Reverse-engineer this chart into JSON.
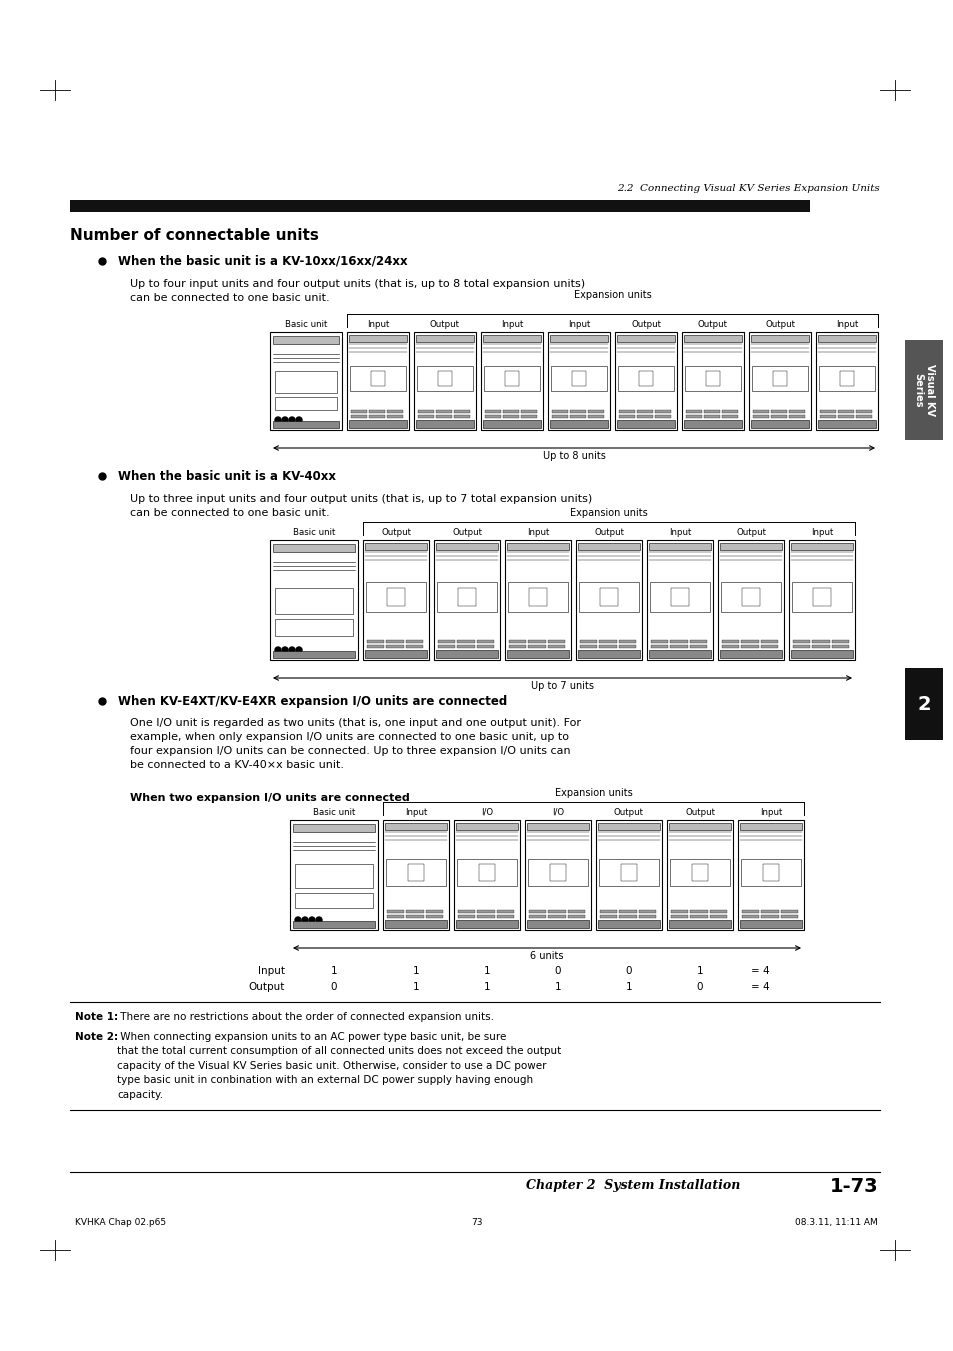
{
  "page_title": "2.2  Connecting Visual KV Series Expansion Units",
  "section_title": "Number of connectable units",
  "bg_color": "#ffffff",
  "header_bar_color": "#1a1a1a",
  "section1_bullet": "When the basic unit is a KV-10xx/16xx/24xx",
  "section1_body": "Up to four input units and four output units (that is, up to 8 total expansion units)\ncan be connected to one basic unit.",
  "section1_expansion_label": "Expansion units",
  "section1_units": [
    "Basic unit",
    "Input",
    "Output",
    "Input",
    "Input",
    "Output",
    "Output",
    "Output",
    "Input"
  ],
  "section1_arrow_label": "Up to 8 units",
  "section2_bullet": "When the basic unit is a KV-40xx",
  "section2_body": "Up to three input units and four output units (that is, up to 7 total expansion units)\ncan be connected to one basic unit.",
  "section2_expansion_label": "Expansion units",
  "section2_units": [
    "Basic unit",
    "Output",
    "Output",
    "Input",
    "Output",
    "Input",
    "Output",
    "Input"
  ],
  "section2_arrow_label": "Up to 7 units",
  "section3_bullet": "When KV-E4XT/KV-E4XR expansion I/O units are connected",
  "section3_body": "One I/O unit is regarded as two units (that is, one input and one output unit). For\nexample, when only expansion I/O units are connected to one basic unit, up to\nfour expansion I/O units can be connected. Up to three expansion I/O units can\nbe connected to a KV-40×x basic unit.",
  "section3_sub_label": "When two expansion I/O units are connected",
  "section3_expansion_label": "Expansion units",
  "section3_units": [
    "Basic unit",
    "Input",
    "I/O",
    "I/O",
    "Output",
    "Output",
    "Input"
  ],
  "section3_arrow_label": "6 units",
  "section3_input_row": [
    "Input",
    "1",
    "1",
    "1",
    "0",
    "0",
    "1",
    "= 4"
  ],
  "section3_output_row": [
    "Output",
    "0",
    "1",
    "1",
    "1",
    "1",
    "0",
    "= 4"
  ],
  "note1_bold": "Note 1:",
  "note1_rest": " There are no restrictions about the order of connected expansion units.",
  "note2_bold": "Note 2:",
  "note2_rest": " When connecting expansion units to an AC power type basic unit, be sure\nthat the total current consumption of all connected units does not exceed the output\ncapacity of the Visual KV Series basic unit. Otherwise, consider to use a DC power\ntype basic unit in conbination with an external DC power supply having enough\ncapacity.",
  "chapter_label": "Chapter 2  System Installation",
  "page_number": "1-73",
  "footer_left": "KVHKA Chap 02.p65",
  "footer_center": "73",
  "footer_right": "08.3.11, 11:11 AM",
  "sidebar_text": "Visual KV\nSeries",
  "sidebar_number": "2"
}
